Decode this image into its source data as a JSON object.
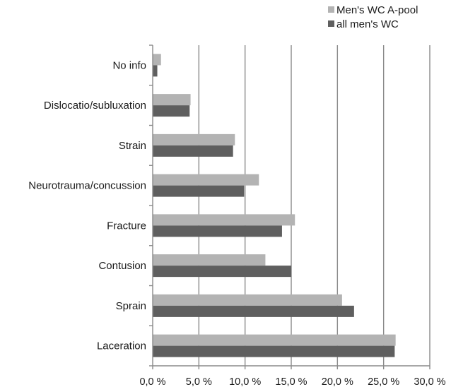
{
  "chart_data": {
    "type": "bar",
    "orientation": "horizontal",
    "categories": [
      "No info",
      "Dislocatio/subluxation",
      "Strain",
      "Neurotrauma/concussion",
      "Fracture",
      "Contusion",
      "Sprain",
      "Laceration"
    ],
    "series": [
      {
        "name": "Men's WC A-pool",
        "color": "#b3b3b3",
        "values": [
          0.9,
          4.1,
          8.9,
          11.5,
          15.4,
          12.2,
          20.5,
          26.3
        ]
      },
      {
        "name": "all men's WC",
        "color": "#5f5f5f",
        "values": [
          0.5,
          4.0,
          8.7,
          9.9,
          14.0,
          15.0,
          21.8,
          26.2
        ]
      }
    ],
    "xlim": [
      0,
      30
    ],
    "xticks": [
      0,
      5,
      10,
      15,
      20,
      25,
      30
    ],
    "xtick_labels": [
      "0,0 %",
      "5,0 %",
      "10,0 %",
      "15,0 %",
      "20,0 %",
      "25,0 %",
      "30,0 %"
    ],
    "grid": "vertical",
    "legend_position": "top-right"
  }
}
